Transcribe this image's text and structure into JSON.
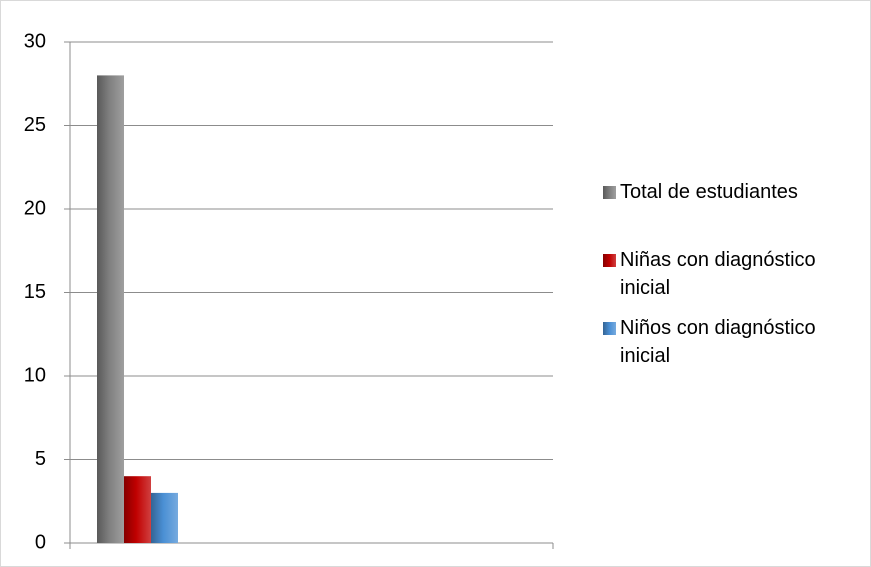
{
  "chart_data": {
    "type": "bar",
    "categories": [
      null
    ],
    "series": [
      {
        "name": "Total de estudiantes",
        "color": "#7f7f7f",
        "values": [
          28
        ]
      },
      {
        "name": "Niñas con diagnóstico inicial",
        "color": "#c00000",
        "values": [
          4
        ]
      },
      {
        "name": "Niños con diagnóstico inicial",
        "color": "#4a8fd4",
        "values": [
          3
        ]
      }
    ],
    "ylim": [
      0,
      30
    ],
    "yticks": [
      0,
      5,
      10,
      15,
      20,
      25,
      30
    ],
    "grid": true,
    "legend": "right"
  }
}
